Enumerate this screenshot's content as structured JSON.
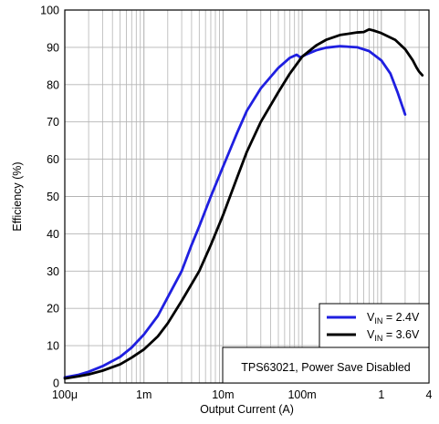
{
  "chart_data": {
    "type": "line",
    "xscale": "log",
    "xlim": [
      0.0001,
      4
    ],
    "ylim": [
      0,
      100
    ],
    "xlabel": "Output Current (A)",
    "ylabel": "Efficiency (%)",
    "grid": true,
    "xticks": [
      {
        "value": 0.0001,
        "label": "100μ"
      },
      {
        "value": 0.001,
        "label": "1m"
      },
      {
        "value": 0.01,
        "label": "10m"
      },
      {
        "value": 0.1,
        "label": "100m"
      },
      {
        "value": 1,
        "label": "1"
      },
      {
        "value": 4,
        "label": "4"
      }
    ],
    "yticks": [
      0,
      10,
      20,
      30,
      40,
      50,
      60,
      70,
      80,
      90,
      100
    ],
    "legend": {
      "placement": "bottom-right",
      "entries": [
        {
          "prefix": "V",
          "sub": "IN",
          "suffix": " = 2.4V"
        },
        {
          "prefix": "V",
          "sub": "IN",
          "suffix": " = 3.6V"
        }
      ]
    },
    "annotation": "TPS63021, Power Save Disabled",
    "colors": {
      "series_a": "#1f1fe0",
      "series_b": "#000000",
      "grid": "#b4b4b4"
    },
    "series": [
      {
        "name": "V_IN = 2.4V",
        "color": "#1f1fe0",
        "points": [
          [
            0.0001,
            1.5
          ],
          [
            0.00015,
            2.2
          ],
          [
            0.0002,
            3.0
          ],
          [
            0.0003,
            4.5
          ],
          [
            0.0005,
            7.0
          ],
          [
            0.0007,
            9.5
          ],
          [
            0.001,
            13
          ],
          [
            0.0015,
            18
          ],
          [
            0.002,
            23
          ],
          [
            0.003,
            30
          ],
          [
            0.004,
            37
          ],
          [
            0.005,
            42
          ],
          [
            0.007,
            50
          ],
          [
            0.01,
            58
          ],
          [
            0.015,
            67
          ],
          [
            0.02,
            73
          ],
          [
            0.03,
            79
          ],
          [
            0.05,
            84.5
          ],
          [
            0.07,
            87.2
          ],
          [
            0.085,
            88.0
          ],
          [
            0.095,
            87.3
          ],
          [
            0.11,
            88.0
          ],
          [
            0.15,
            89.2
          ],
          [
            0.2,
            89.9
          ],
          [
            0.3,
            90.3
          ],
          [
            0.5,
            90.0
          ],
          [
            0.7,
            89.0
          ],
          [
            1.0,
            86.5
          ],
          [
            1.3,
            83
          ],
          [
            1.6,
            78
          ],
          [
            2.0,
            72
          ]
        ]
      },
      {
        "name": "V_IN = 3.6V",
        "color": "#000000",
        "points": [
          [
            0.0001,
            1.2
          ],
          [
            0.00015,
            1.8
          ],
          [
            0.0002,
            2.3
          ],
          [
            0.0003,
            3.3
          ],
          [
            0.0005,
            5.0
          ],
          [
            0.0007,
            6.8
          ],
          [
            0.001,
            9.0
          ],
          [
            0.0015,
            12.5
          ],
          [
            0.002,
            16
          ],
          [
            0.003,
            22
          ],
          [
            0.005,
            30
          ],
          [
            0.007,
            37
          ],
          [
            0.01,
            45
          ],
          [
            0.015,
            55
          ],
          [
            0.02,
            62
          ],
          [
            0.03,
            70
          ],
          [
            0.05,
            78
          ],
          [
            0.07,
            83
          ],
          [
            0.1,
            87.5
          ],
          [
            0.15,
            90.5
          ],
          [
            0.2,
            92.0
          ],
          [
            0.3,
            93.3
          ],
          [
            0.5,
            94.0
          ],
          [
            0.6,
            94.1
          ],
          [
            0.7,
            94.8
          ],
          [
            0.8,
            94.5
          ],
          [
            1.0,
            93.8
          ],
          [
            1.5,
            92.0
          ],
          [
            2.0,
            89.5
          ],
          [
            2.5,
            86.5
          ],
          [
            2.8,
            84.5
          ],
          [
            3.0,
            83.5
          ],
          [
            3.3,
            82.5
          ]
        ]
      }
    ]
  }
}
